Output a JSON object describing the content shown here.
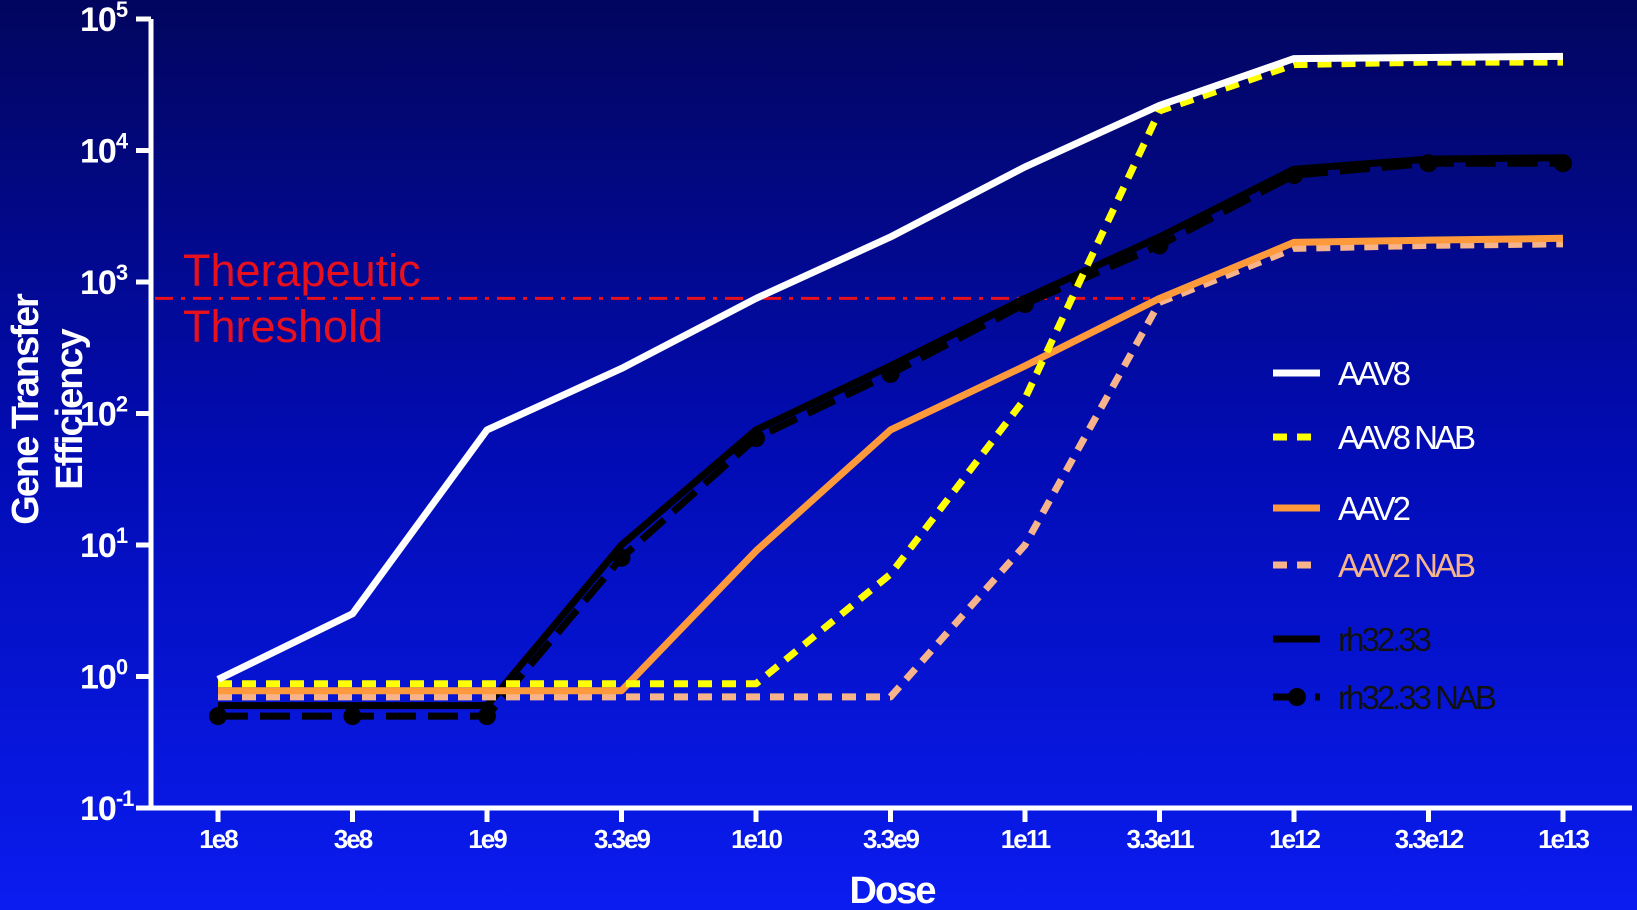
{
  "chart_data": {
    "type": "line",
    "xlabel": "Dose",
    "ylabel_line1": "Gene Transfer",
    "ylabel_line2": "Efficiency",
    "yscale": "log",
    "ylim": [
      0.1,
      100000
    ],
    "y_ticks": [
      {
        "base": "10",
        "exp": "-1",
        "value": 0.1
      },
      {
        "base": "10",
        "exp": "0",
        "value": 1
      },
      {
        "base": "10",
        "exp": "1",
        "value": 10
      },
      {
        "base": "10",
        "exp": "2",
        "value": 100
      },
      {
        "base": "10",
        "exp": "3",
        "value": 1000
      },
      {
        "base": "10",
        "exp": "4",
        "value": 10000
      },
      {
        "base": "10",
        "exp": "5",
        "value": 100000
      }
    ],
    "categories": [
      "1e8",
      "3e8",
      "1e9",
      "3.3e9",
      "1e10",
      "3.3e9",
      "1e11",
      "3.3e11",
      "1e12",
      "3.3e12",
      "1e13"
    ],
    "threshold": {
      "value": 750,
      "label_line1": "Therapeutic",
      "label_line2": "Threshold",
      "color": "#e8101c"
    },
    "legend_position": "right",
    "series": [
      {
        "name": "AAV8",
        "color": "#ffffff",
        "style": "solid",
        "marker": "none",
        "legend_color": "#ffffff",
        "values": [
          0.95,
          3,
          75,
          220,
          750,
          2200,
          7500,
          22000,
          50000,
          51000,
          52000
        ]
      },
      {
        "name": "AAV8 NAB",
        "color": "#ffff00",
        "style": "dotted",
        "marker": "none",
        "legend_color": "#ffffff",
        "values": [
          0.88,
          0.88,
          0.88,
          0.88,
          0.88,
          6,
          130,
          20000,
          45000,
          47000,
          47000
        ]
      },
      {
        "name": "AAV2",
        "color": "#ff9a3c",
        "style": "solid",
        "marker": "none",
        "legend_color": "#ffffff",
        "values": [
          0.78,
          0.78,
          0.78,
          0.78,
          9,
          75,
          230,
          750,
          2000,
          2080,
          2150
        ]
      },
      {
        "name": "AAV2 NAB",
        "color": "#f7b48a",
        "style": "dotted",
        "marker": "none",
        "legend_color": "#f7b48a",
        "values": [
          0.7,
          0.7,
          0.7,
          0.7,
          0.7,
          0.7,
          10,
          700,
          1800,
          1900,
          1950
        ]
      },
      {
        "name": "rh32.33",
        "color": "#000000",
        "style": "solid",
        "marker": "none",
        "legend_color": "#111111",
        "values": [
          0.6,
          0.6,
          0.6,
          10,
          75,
          230,
          750,
          2200,
          7200,
          8600,
          8800
        ]
      },
      {
        "name": "rh32.33 NAB",
        "color": "#000000",
        "style": "dashed",
        "marker": "circle",
        "legend_color": "#111111",
        "values": [
          0.5,
          0.5,
          0.5,
          8,
          65,
          200,
          680,
          1900,
          6500,
          8000,
          8000
        ]
      }
    ]
  }
}
